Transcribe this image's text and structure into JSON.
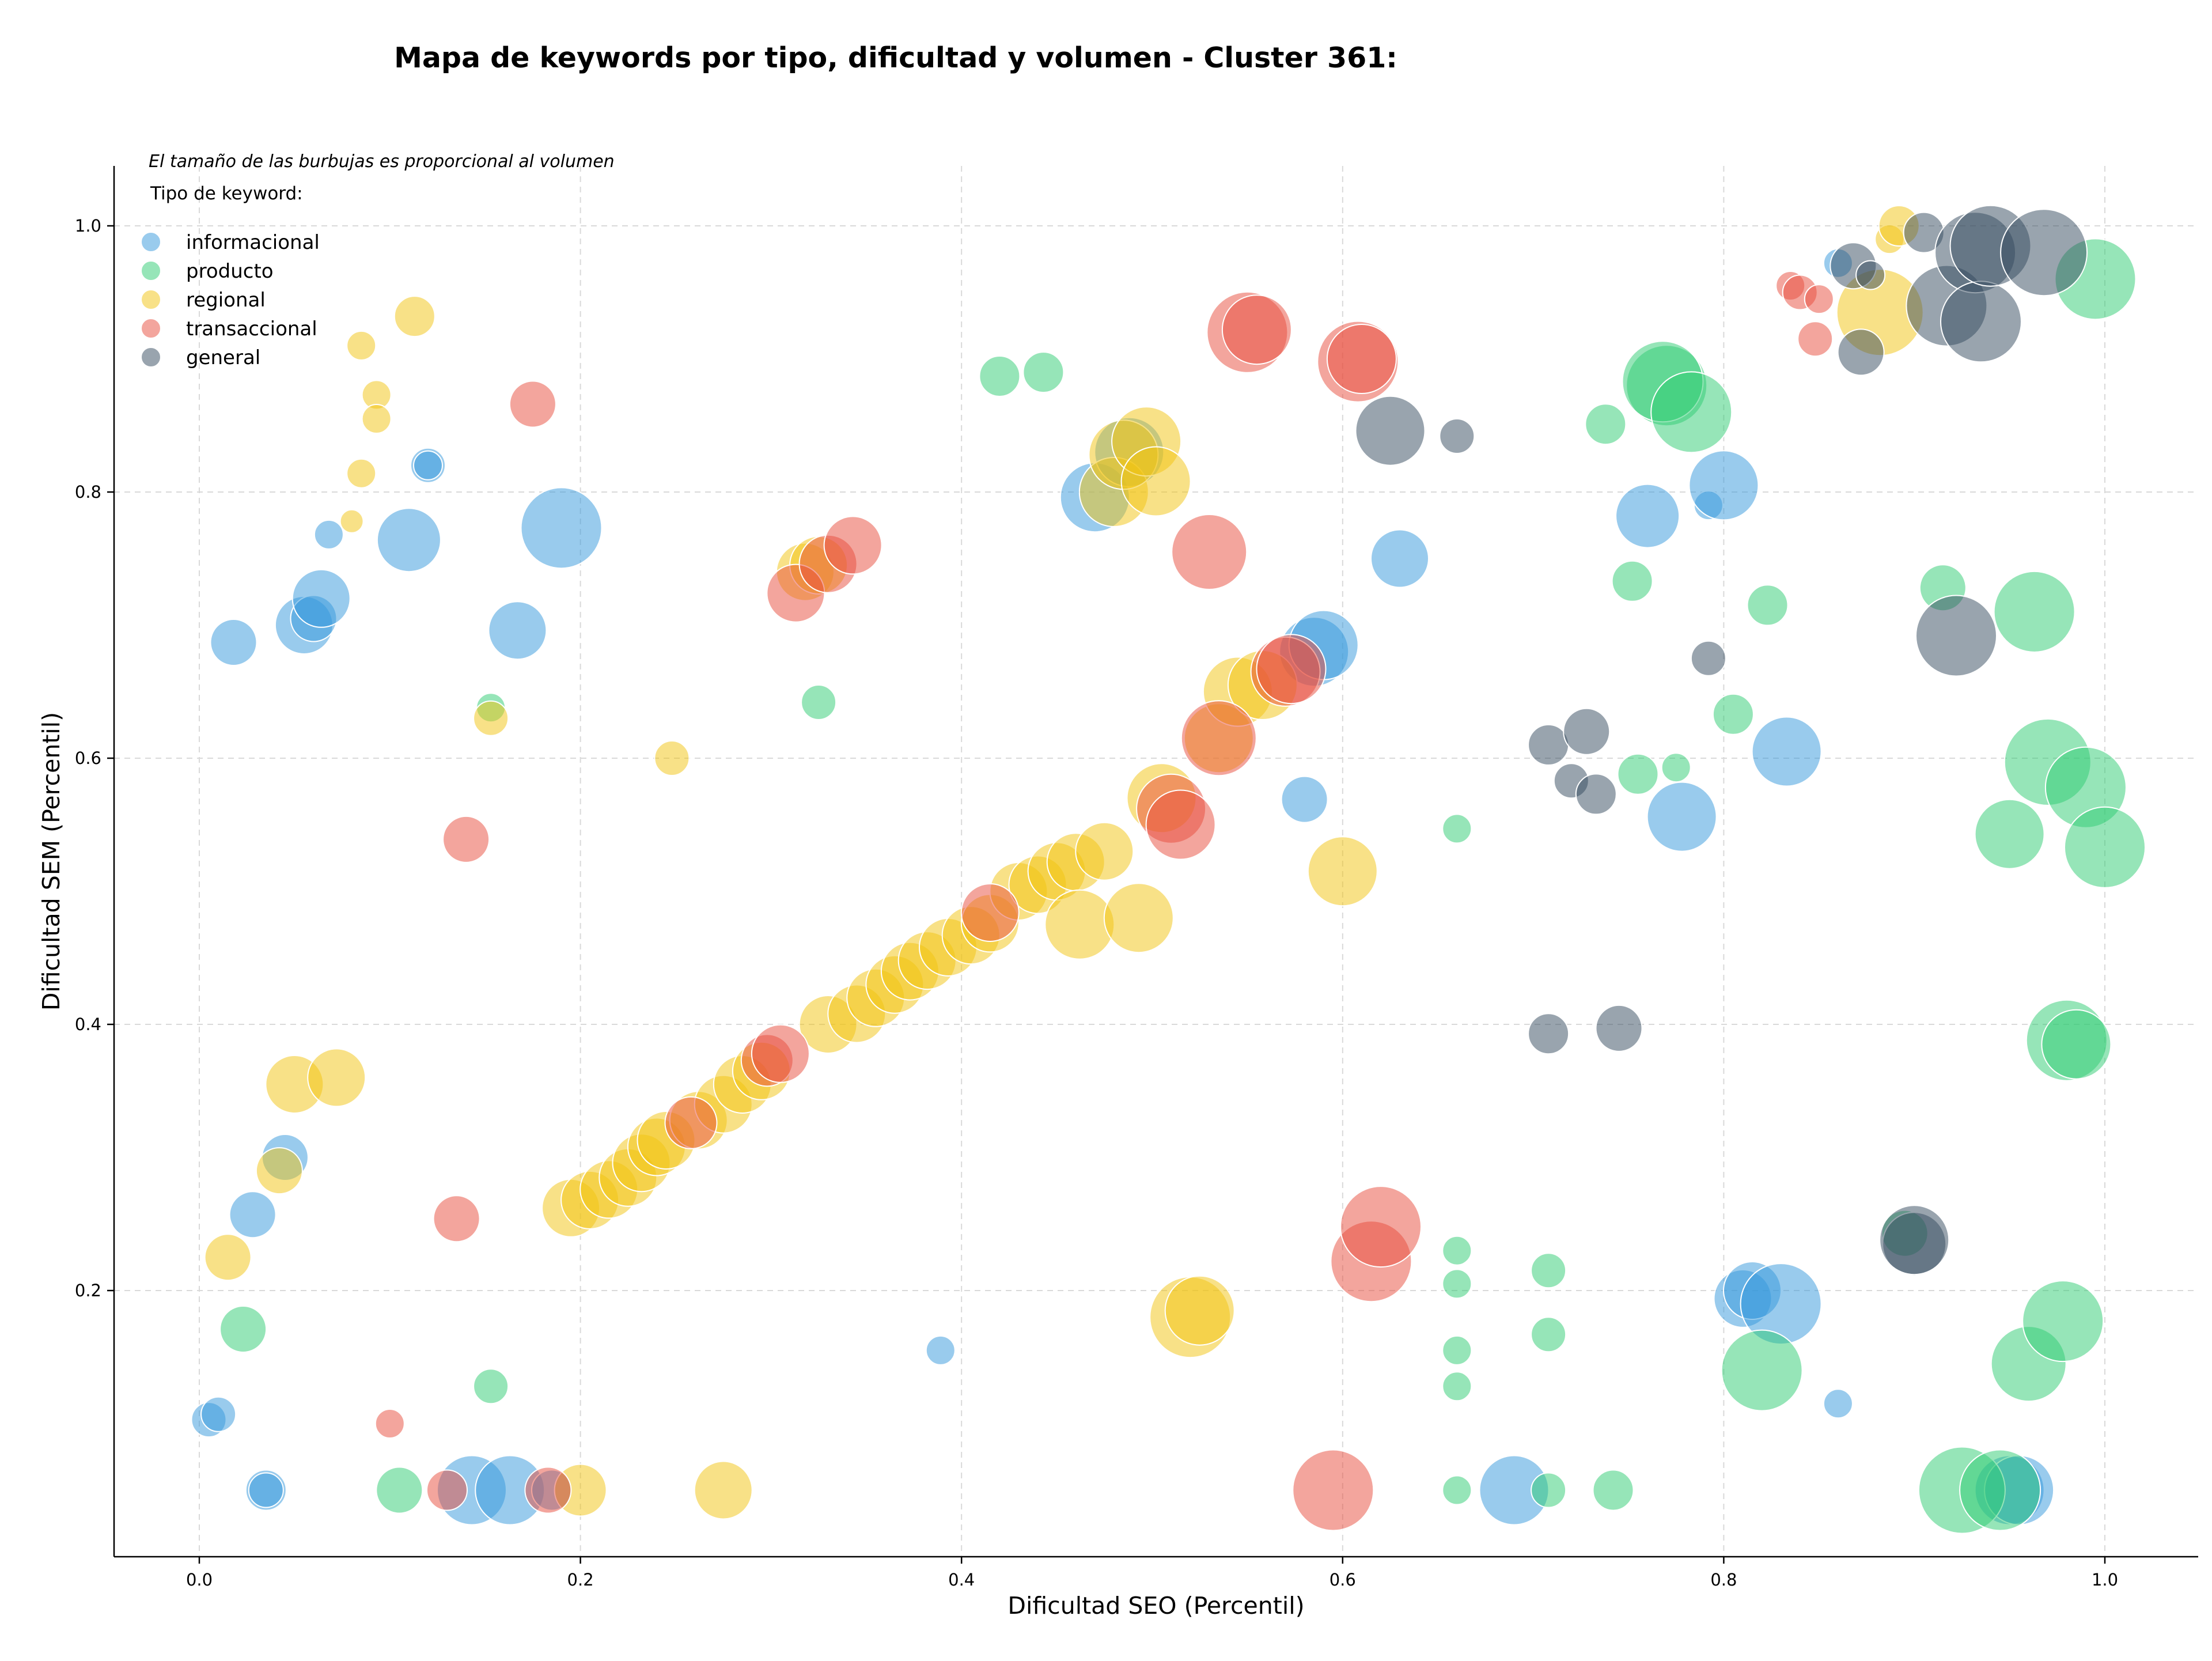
{
  "chart_data": {
    "type": "scatter",
    "title": "Mapa de keywords por tipo, dificultad y volumen - Cluster 361:",
    "subtitle": "El tamaño de las burbujas es proporcional al volumen",
    "xlabel": "Dificultad SEO (Percentil)",
    "ylabel": "Dificultad SEM (Percentil)",
    "xlim": [
      -0.045,
      1.05
    ],
    "ylim": [
      0,
      1.05
    ],
    "x_ticks": [
      0.0,
      0.2,
      0.4,
      0.6,
      0.8,
      1.0
    ],
    "x_tick_labels": [
      "0.0",
      "0.2",
      "0.4",
      "0.6",
      "0.8",
      "1.0"
    ],
    "y_ticks": [
      0.2,
      0.4,
      0.6,
      0.8,
      1.0
    ],
    "y_tick_labels": [
      "0.2",
      "0.4",
      "0.6",
      "0.8",
      "1.0"
    ],
    "grid": true,
    "legend": {
      "title": "Tipo de keyword:",
      "placement": "top-left"
    },
    "size_encoding": "volume",
    "series": [
      {
        "name": "informacional",
        "color": "#3498db",
        "points": [
          [
            0.005,
            0.103,
            3
          ],
          [
            0.01,
            0.107,
            3
          ],
          [
            0.035,
            0.05,
            3.5
          ],
          [
            0.035,
            0.05,
            3
          ],
          [
            0.143,
            0.05,
            6
          ],
          [
            0.163,
            0.05,
            6
          ],
          [
            0.185,
            0.05,
            3.5
          ],
          [
            0.028,
            0.257,
            4
          ],
          [
            0.045,
            0.3,
            4
          ],
          [
            0.018,
            0.687,
            4
          ],
          [
            0.055,
            0.7,
            5
          ],
          [
            0.06,
            0.705,
            4
          ],
          [
            0.064,
            0.72,
            5
          ],
          [
            0.068,
            0.768,
            2.5
          ],
          [
            0.11,
            0.764,
            5.5
          ],
          [
            0.12,
            0.82,
            3
          ],
          [
            0.12,
            0.82,
            2.5
          ],
          [
            0.167,
            0.696,
            5
          ],
          [
            0.19,
            0.773,
            7
          ],
          [
            0.389,
            0.155,
            2.5
          ],
          [
            0.47,
            0.796,
            6
          ],
          [
            0.488,
            0.83,
            6
          ],
          [
            0.58,
            0.569,
            4
          ],
          [
            0.585,
            0.68,
            6
          ],
          [
            0.59,
            0.685,
            6
          ],
          [
            0.63,
            0.75,
            5
          ],
          [
            0.69,
            0.05,
            6
          ],
          [
            0.76,
            0.782,
            5.5
          ],
          [
            0.778,
            0.556,
            6
          ],
          [
            0.792,
            0.79,
            2.5
          ],
          [
            0.8,
            0.805,
            6
          ],
          [
            0.81,
            0.194,
            5
          ],
          [
            0.815,
            0.2,
            5
          ],
          [
            0.83,
            0.19,
            7
          ],
          [
            0.833,
            0.605,
            6
          ],
          [
            0.86,
            0.115,
            2.5
          ],
          [
            0.86,
            0.972,
            2.5
          ],
          [
            0.95,
            0.05,
            6
          ],
          [
            0.955,
            0.05,
            6
          ]
        ]
      },
      {
        "name": "producto",
        "color": "#2ecc71",
        "points": [
          [
            0.023,
            0.171,
            4
          ],
          [
            0.105,
            0.05,
            4
          ],
          [
            0.153,
            0.128,
            3
          ],
          [
            0.153,
            0.638,
            2.5
          ],
          [
            0.325,
            0.642,
            3
          ],
          [
            0.42,
            0.887,
            3.5
          ],
          [
            0.443,
            0.89,
            3.5
          ],
          [
            0.66,
            0.23,
            2.5
          ],
          [
            0.66,
            0.205,
            2.5
          ],
          [
            0.66,
            0.155,
            2.5
          ],
          [
            0.66,
            0.128,
            2.5
          ],
          [
            0.66,
            0.05,
            2.5
          ],
          [
            0.66,
            0.547,
            2.5
          ],
          [
            0.708,
            0.167,
            3
          ],
          [
            0.708,
            0.215,
            3
          ],
          [
            0.708,
            0.05,
            3
          ],
          [
            0.738,
            0.851,
            3.5
          ],
          [
            0.742,
            0.05,
            3.5
          ],
          [
            0.752,
            0.733,
            3.5
          ],
          [
            0.755,
            0.588,
            3.5
          ],
          [
            0.77,
            0.88,
            7
          ],
          [
            0.775,
            0.593,
            2.5
          ],
          [
            0.768,
            0.883,
            7
          ],
          [
            0.783,
            0.86,
            7
          ],
          [
            0.805,
            0.633,
            3.5
          ],
          [
            0.823,
            0.715,
            3.5
          ],
          [
            0.82,
            0.14,
            7
          ],
          [
            0.895,
            0.243,
            4
          ],
          [
            0.915,
            0.728,
            4
          ],
          [
            0.925,
            0.05,
            7.5
          ],
          [
            0.945,
            0.05,
            7
          ],
          [
            0.95,
            0.543,
            6
          ],
          [
            0.96,
            0.145,
            6.5
          ],
          [
            0.963,
            0.71,
            7
          ],
          [
            0.97,
            0.597,
            7.5
          ],
          [
            0.978,
            0.177,
            7
          ],
          [
            0.98,
            0.388,
            7
          ],
          [
            0.985,
            0.385,
            6
          ],
          [
            0.99,
            0.578,
            7
          ],
          [
            0.995,
            0.96,
            7
          ],
          [
            1.0,
            0.533,
            7
          ]
        ]
      },
      {
        "name": "regional",
        "color": "#f1c40f",
        "points": [
          [
            0.015,
            0.225,
            4
          ],
          [
            0.042,
            0.29,
            4
          ],
          [
            0.05,
            0.355,
            5
          ],
          [
            0.072,
            0.36,
            5
          ],
          [
            0.08,
            0.778,
            2
          ],
          [
            0.085,
            0.814,
            2.5
          ],
          [
            0.085,
            0.91,
            2.5
          ],
          [
            0.093,
            0.873,
            2.5
          ],
          [
            0.093,
            0.855,
            2.5
          ],
          [
            0.113,
            0.932,
            3.5
          ],
          [
            0.153,
            0.63,
            3
          ],
          [
            0.2,
            0.05,
            4.5
          ],
          [
            0.248,
            0.6,
            3
          ],
          [
            0.275,
            0.05,
            5
          ],
          [
            0.195,
            0.262,
            5
          ],
          [
            0.205,
            0.268,
            5
          ],
          [
            0.215,
            0.276,
            5
          ],
          [
            0.225,
            0.285,
            5
          ],
          [
            0.232,
            0.296,
            5
          ],
          [
            0.24,
            0.308,
            5
          ],
          [
            0.245,
            0.313,
            5
          ],
          [
            0.262,
            0.328,
            5
          ],
          [
            0.275,
            0.34,
            5
          ],
          [
            0.285,
            0.355,
            5
          ],
          [
            0.295,
            0.365,
            5
          ],
          [
            0.33,
            0.4,
            5
          ],
          [
            0.345,
            0.408,
            5
          ],
          [
            0.355,
            0.42,
            5
          ],
          [
            0.365,
            0.43,
            5
          ],
          [
            0.373,
            0.44,
            5
          ],
          [
            0.382,
            0.448,
            5
          ],
          [
            0.393,
            0.458,
            5
          ],
          [
            0.405,
            0.467,
            5
          ],
          [
            0.415,
            0.476,
            5
          ],
          [
            0.43,
            0.5,
            5
          ],
          [
            0.44,
            0.505,
            5
          ],
          [
            0.45,
            0.515,
            5
          ],
          [
            0.46,
            0.522,
            5
          ],
          [
            0.475,
            0.53,
            5
          ],
          [
            0.462,
            0.475,
            6
          ],
          [
            0.493,
            0.48,
            6
          ],
          [
            0.48,
            0.8,
            6
          ],
          [
            0.485,
            0.828,
            6
          ],
          [
            0.497,
            0.838,
            6
          ],
          [
            0.502,
            0.808,
            6
          ],
          [
            0.505,
            0.57,
            6
          ],
          [
            0.52,
            0.18,
            7
          ],
          [
            0.525,
            0.185,
            6
          ],
          [
            0.535,
            0.615,
            6
          ],
          [
            0.545,
            0.65,
            6
          ],
          [
            0.558,
            0.655,
            6
          ],
          [
            0.318,
            0.74,
            5
          ],
          [
            0.325,
            0.745,
            5
          ],
          [
            0.6,
            0.515,
            6
          ],
          [
            0.882,
            0.935,
            7.5
          ],
          [
            0.887,
            0.99,
            2.5
          ],
          [
            0.892,
            1.0,
            3.5
          ]
        ]
      },
      {
        "name": "transaccional",
        "color": "#e74c3c",
        "points": [
          [
            0.1,
            0.1,
            2.5
          ],
          [
            0.13,
            0.05,
            3.5
          ],
          [
            0.135,
            0.254,
            4
          ],
          [
            0.14,
            0.539,
            4
          ],
          [
            0.175,
            0.866,
            4
          ],
          [
            0.183,
            0.05,
            4
          ],
          [
            0.258,
            0.326,
            4.5
          ],
          [
            0.298,
            0.373,
            4.5
          ],
          [
            0.305,
            0.378,
            5
          ],
          [
            0.313,
            0.724,
            5
          ],
          [
            0.33,
            0.746,
            5
          ],
          [
            0.343,
            0.76,
            5
          ],
          [
            0.415,
            0.484,
            5
          ],
          [
            0.51,
            0.562,
            6
          ],
          [
            0.515,
            0.55,
            6
          ],
          [
            0.53,
            0.755,
            6.5
          ],
          [
            0.535,
            0.615,
            6.5
          ],
          [
            0.55,
            0.92,
            7
          ],
          [
            0.555,
            0.922,
            6
          ],
          [
            0.57,
            0.665,
            6
          ],
          [
            0.573,
            0.667,
            6
          ],
          [
            0.595,
            0.05,
            7
          ],
          [
            0.608,
            0.898,
            7
          ],
          [
            0.61,
            0.9,
            6
          ],
          [
            0.615,
            0.222,
            7
          ],
          [
            0.62,
            0.248,
            7
          ],
          [
            0.835,
            0.955,
            2.5
          ],
          [
            0.84,
            0.95,
            3
          ],
          [
            0.848,
            0.915,
            3
          ],
          [
            0.85,
            0.945,
            2.5
          ]
        ]
      },
      {
        "name": "general",
        "color": "#34495e",
        "points": [
          [
            0.625,
            0.846,
            6
          ],
          [
            0.66,
            0.842,
            3
          ],
          [
            0.708,
            0.61,
            3.5
          ],
          [
            0.708,
            0.393,
            3.5
          ],
          [
            0.72,
            0.583,
            3
          ],
          [
            0.728,
            0.62,
            4
          ],
          [
            0.733,
            0.573,
            3.5
          ],
          [
            0.745,
            0.397,
            4
          ],
          [
            0.792,
            0.675,
            3
          ],
          [
            0.868,
            0.97,
            4
          ],
          [
            0.872,
            0.905,
            4
          ],
          [
            0.877,
            0.963,
            2.5
          ],
          [
            0.9,
            0.235,
            5.5
          ],
          [
            0.9,
            0.238,
            6
          ],
          [
            0.905,
            0.995,
            3.5
          ],
          [
            0.917,
            0.94,
            7
          ],
          [
            0.922,
            0.692,
            7
          ],
          [
            0.932,
            0.98,
            7
          ],
          [
            0.935,
            0.928,
            7
          ],
          [
            0.94,
            0.985,
            7
          ],
          [
            0.968,
            0.98,
            7.5
          ]
        ]
      }
    ]
  }
}
